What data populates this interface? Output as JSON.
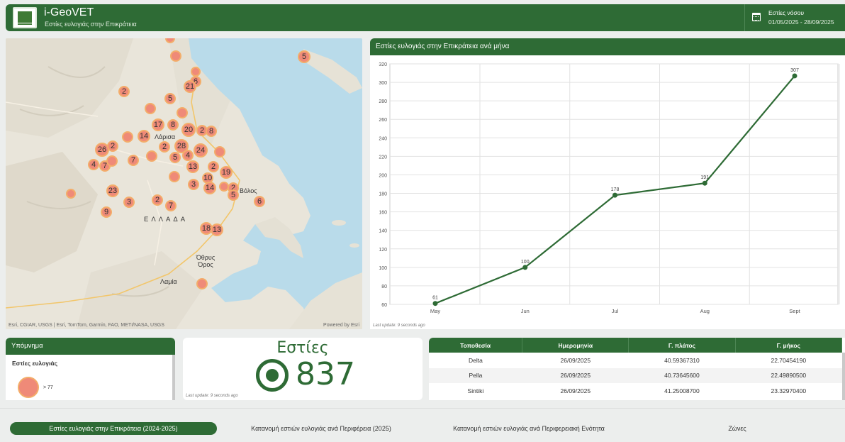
{
  "header": {
    "app_title": "i-GeoVET",
    "subtitle": "Εστίες ευλογιάς στην Επικράτεια",
    "date_label": "Εστίες νόσου",
    "date_range": "01/05/2025 - 28/09/2025",
    "calendar_icon": "calendar-icon"
  },
  "map": {
    "country_label": "ΕΛΛΑΔΑ",
    "place_labels": [
      "Λάρισα",
      "Βόλος",
      "Όθρυς Όρος",
      "Λαμία"
    ],
    "attribution": "Esri, CGIAR, USGS | Esri, TomTom, Garmin, FAO, METI/NASA, USGS",
    "powered_by": "Powered by Esri",
    "cluster_color": "#ef8a78",
    "clusters": [
      "5",
      "2",
      "6",
      "21",
      "5",
      "17",
      "8",
      "20",
      "2",
      "8",
      "14",
      "26",
      "2",
      "28",
      "24",
      "2",
      "4",
      "5",
      "4",
      "7",
      "7",
      "13",
      "2",
      "19",
      "10",
      "3",
      "14",
      "2",
      "5",
      "23",
      "3",
      "2",
      "7",
      "6",
      "9",
      "18",
      "13"
    ]
  },
  "chart": {
    "title": "Εστίες ευλογιάς στην Επικράτεια ανά μήνα",
    "last_update": "Last update: 9 seconds ago"
  },
  "chart_data": {
    "type": "line",
    "categories": [
      "May",
      "Jun",
      "Jul",
      "Aug",
      "Sept"
    ],
    "values": [
      61,
      100,
      178,
      191,
      307
    ],
    "data_labels": [
      "61",
      "100",
      "178",
      "191",
      "307"
    ],
    "ylim": [
      60,
      320
    ],
    "yticks": [
      60,
      80,
      100,
      120,
      140,
      160,
      180,
      200,
      220,
      240,
      260,
      280,
      300,
      320
    ],
    "grid": true,
    "color": "#2e6b35"
  },
  "legend": {
    "header": "Υπόμνημα",
    "title": "Εστίες ευλογιάς",
    "item_label": "> 77"
  },
  "kpi": {
    "title": "Εστίες",
    "value": "837",
    "last_update": "Last update: 9 seconds ago"
  },
  "table": {
    "columns": [
      "Τοποθεσία",
      "Ημερομηνία",
      "Γ. πλάτος",
      "Γ. μήκος"
    ],
    "rows": [
      [
        "Delta",
        "26/09/2025",
        "40.59367310",
        "22.70454190"
      ],
      [
        "Pella",
        "26/09/2025",
        "40.73645600",
        "22.49890500"
      ],
      [
        "Sintiki",
        "26/09/2025",
        "41.25008700",
        "23.32970400"
      ]
    ]
  },
  "nav": {
    "items": [
      "Εστίες ευλογιάς στην Επικράτεια (2024-2025)",
      "Κατανομή εστιών ευλογιάς ανά Περιφέρεια (2025)",
      "Κατανομή εστιών ευλογιάς ανά Περιφερειακή Ενότητα",
      "Ζώνες"
    ],
    "active_index": 0
  }
}
